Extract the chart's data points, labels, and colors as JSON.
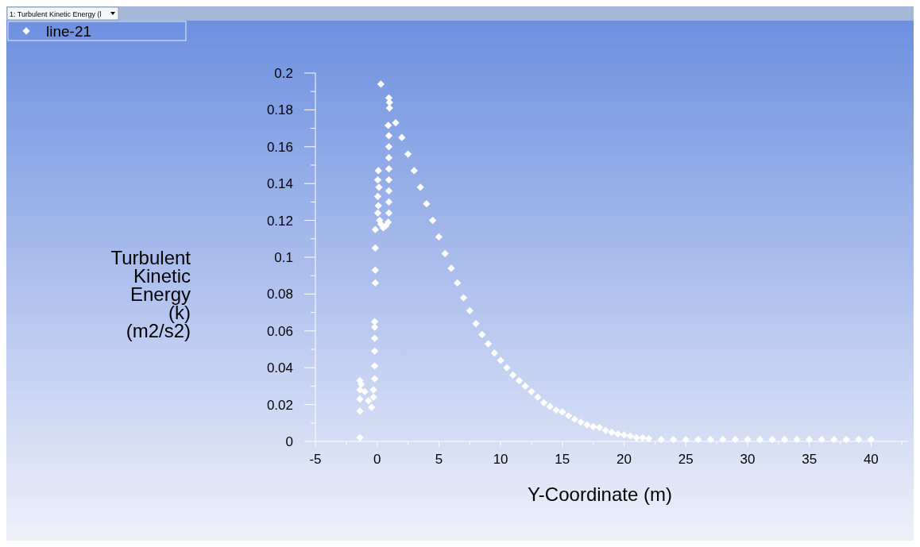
{
  "chart_data": {
    "type": "scatter",
    "xlabel": "Y-Coordinate (m)",
    "ylabel": "Turbulent Kinetic Energy (k) (m2/s2)",
    "annotations": [
      "1: Turbulent Kinetic Energy (l"
    ],
    "xlim": [
      -5,
      43
    ],
    "ylim": [
      0,
      0.2
    ],
    "xticks": [
      {
        "value": -5,
        "label": "-5"
      },
      {
        "value": -2.5,
        "label": null
      },
      0,
      {
        "value": 2.5,
        "label": null
      },
      5,
      {
        "value": 7.5,
        "label": null
      },
      10,
      {
        "value": 12.5,
        "label": null
      },
      15,
      {
        "value": 17.5,
        "label": null
      },
      20,
      {
        "value": 22.5,
        "label": null
      },
      25,
      {
        "value": 27.5,
        "label": null
      },
      30,
      {
        "value": 32.5,
        "label": null
      },
      35,
      {
        "value": 37.5,
        "label": null
      },
      40,
      {
        "value": 42.5,
        "label": null
      }
    ],
    "yticks": [
      0,
      {
        "value": 0.01,
        "label": null
      },
      0.02,
      {
        "value": 0.03,
        "label": null
      },
      0.04,
      {
        "value": 0.05,
        "label": null
      },
      0.06,
      {
        "value": 0.07,
        "label": null
      },
      0.08,
      {
        "value": 0.09,
        "label": null
      },
      0.1,
      {
        "value": 0.11,
        "label": null
      },
      0.12,
      {
        "value": 0.13,
        "label": null
      },
      0.14,
      {
        "value": 0.15,
        "label": null
      },
      0.16,
      {
        "value": 0.17,
        "label": null
      },
      0.18,
      {
        "value": 0.19,
        "label": null
      },
      0.2
    ],
    "grid": false,
    "legend": "top left",
    "marker": "diamond",
    "series": [
      {
        "name": "line-21",
        "color": "#ffffff",
        "x": [
          0.3,
          0.95,
          1.0,
          0.9,
          0.95,
          0.95,
          0.95,
          0.95,
          0.95,
          0.95,
          0.95,
          0.95,
          0.9,
          0.7,
          0.5,
          0.1,
          0.05,
          0.15,
          0.05,
          0.1,
          0.05,
          0.2,
          0.3,
          -0.15,
          -0.15,
          -0.15,
          -0.15,
          -0.2,
          -0.2,
          -0.2,
          -0.2,
          -0.2,
          -0.2,
          -0.3,
          -0.3,
          -0.45,
          -0.7,
          -1.0,
          -1.3,
          -1.4,
          -1.4,
          -1.4,
          -1.4,
          -1.4,
          1.0,
          1.5,
          2.0,
          2.5,
          3.0,
          3.5,
          4.0,
          4.5,
          5.0,
          5.5,
          6.0,
          6.5,
          7.0,
          7.5,
          8.0,
          8.5,
          9.0,
          9.5,
          10.0,
          10.5,
          11.0,
          11.5,
          12.0,
          12.5,
          13.0,
          13.5,
          14.0,
          14.5,
          15.0,
          15.5,
          16.0,
          16.5,
          17.0,
          17.5,
          18.0,
          18.5,
          19.0,
          19.5,
          20.0,
          20.5,
          21.0,
          21.5,
          22.0,
          23,
          24,
          25,
          26,
          27,
          28,
          29,
          30,
          31,
          32,
          33,
          34,
          35,
          36,
          37,
          38,
          39,
          40
        ],
        "values": [
          0.194,
          0.1865,
          0.184,
          0.1716,
          0.166,
          0.16,
          0.154,
          0.148,
          0.142,
          0.136,
          0.13,
          0.124,
          0.119,
          0.117,
          0.116,
          0.147,
          0.142,
          0.138,
          0.133,
          0.128,
          0.124,
          0.12,
          0.118,
          0.115,
          0.105,
          0.093,
          0.086,
          0.065,
          0.062,
          0.056,
          0.049,
          0.041,
          0.034,
          0.028,
          0.024,
          0.0185,
          0.022,
          0.027,
          0.031,
          0.033,
          0.028,
          0.023,
          0.0164,
          0.002,
          0.181,
          0.173,
          0.165,
          0.156,
          0.147,
          0.138,
          0.129,
          0.12,
          0.111,
          0.102,
          0.094,
          0.086,
          0.078,
          0.071,
          0.064,
          0.058,
          0.053,
          0.048,
          0.044,
          0.04,
          0.036,
          0.033,
          0.03,
          0.027,
          0.024,
          0.021,
          0.019,
          0.017,
          0.016,
          0.014,
          0.012,
          0.0105,
          0.009,
          0.008,
          0.0075,
          0.006,
          0.005,
          0.004,
          0.0035,
          0.003,
          0.002,
          0.002,
          0.0015,
          0.001,
          0.001,
          0.001,
          0.001,
          0.001,
          0.001,
          0.001,
          0.001,
          0.001,
          0.001,
          0.001,
          0.001,
          0.001,
          0.001,
          0.001,
          0.001,
          0.001,
          0.001
        ]
      }
    ]
  }
}
